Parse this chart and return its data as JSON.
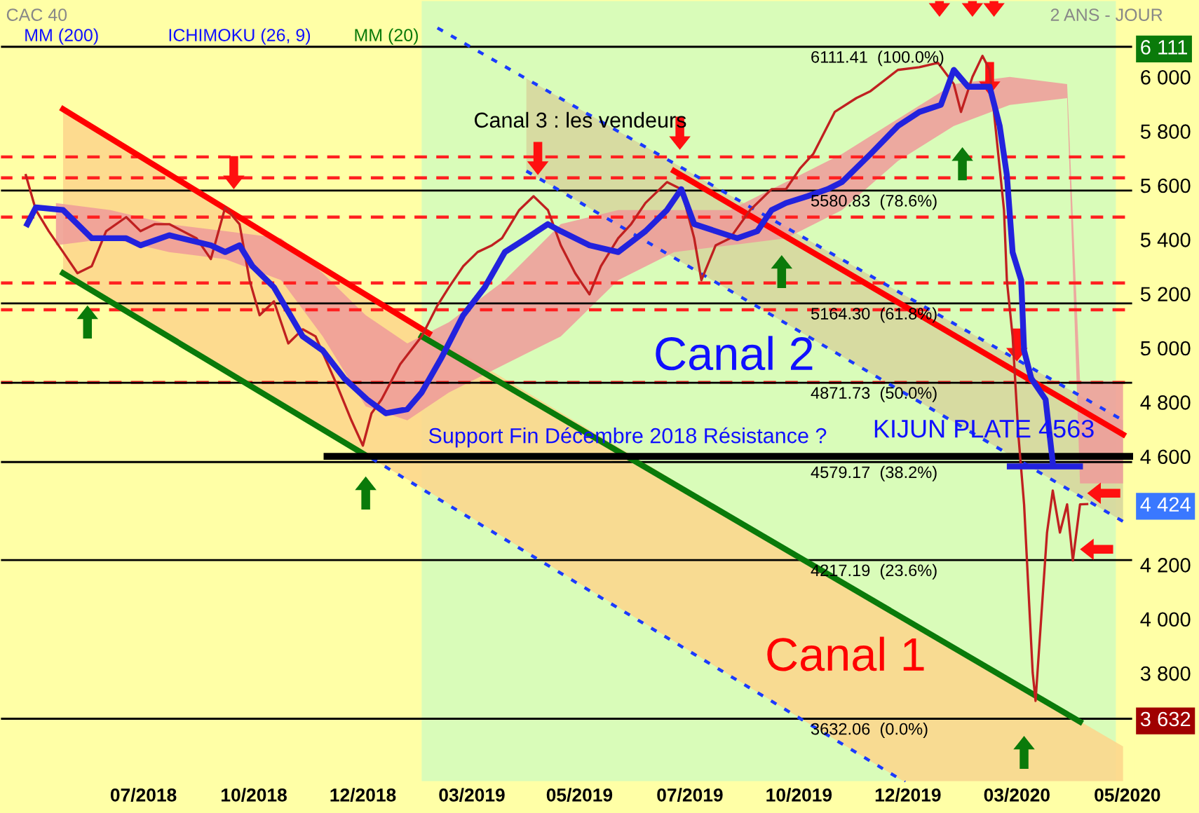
{
  "chart_data": {
    "type": "line",
    "title": "CAC 40",
    "subtitle": "2 ANS - JOUR",
    "annotations": [
      "MM (200)",
      "ICHIMOKU (26, 9)",
      "MM (20)",
      "Canal 3 : les vendeurs",
      "Canal 2",
      "Canal 1",
      "Support Fin Décembre 2018 Résistance ?",
      "KIJUN PLATE 4563"
    ],
    "xlim": [
      "2018-03-23",
      "2020-05-21"
    ],
    "ylim": [
      3398,
      6284
    ],
    "xticks": [
      {
        "value": "2018-07-01",
        "label": "07/2018"
      },
      {
        "value": "2018-09-16",
        "label": "10/2018"
      },
      {
        "value": "2018-12-01",
        "label": "12/2018"
      },
      {
        "value": "2019-02-15",
        "label": "03/2019"
      },
      {
        "value": "2019-05-01",
        "label": "05/2019"
      },
      {
        "value": "2019-07-17",
        "label": "07/2019"
      },
      {
        "value": "2019-10-01",
        "label": "10/2019"
      },
      {
        "value": "2019-12-16",
        "label": "12/2019"
      },
      {
        "value": "2020-03-01",
        "label": "03/2020"
      },
      {
        "value": "2020-05-17",
        "label": "05/2020"
      }
    ],
    "yticks": [
      {
        "value": 3632,
        "label": "3 632"
      },
      {
        "value": 3800,
        "label": "3 800"
      },
      {
        "value": 4000,
        "label": "4 000"
      },
      {
        "value": 4200,
        "label": "4 200"
      },
      {
        "value": 4424,
        "label": "4 424"
      },
      {
        "value": 4600,
        "label": "4 600"
      },
      {
        "value": 4800,
        "label": "4 800"
      },
      {
        "value": 5000,
        "label": "5 000"
      },
      {
        "value": 5200,
        "label": "5 200"
      },
      {
        "value": 5400,
        "label": "5 400"
      },
      {
        "value": 5600,
        "label": "5 600"
      },
      {
        "value": 5800,
        "label": "5 800"
      },
      {
        "value": 6000,
        "label": "6 000"
      },
      {
        "value": 6111,
        "label": "6 111"
      }
    ],
    "bands": [
      {
        "axis": "x",
        "from": "2019-01-11",
        "to": "2020-05-09",
        "color": "#d9fcb9"
      }
    ],
    "series": [
      {
        "type": "area",
        "color": "#fdd58b",
        "x": [
          "2018-05-06",
          "2018-12-03",
          "2019-01-16",
          "2019-12-14",
          "2020-05-14"
        ],
        "values": [
          null,
          null,
          null,
          null,
          null
        ],
        "upper": [
          5881,
          5197,
          5054,
          3999,
          3530
        ],
        "lower": [
          5276,
          4604,
          4470,
          3398,
          3398
        ]
      },
      {
        "type": "area",
        "color": "#d6d59c",
        "x": [
          "2019-03-25",
          "2020-05-14"
        ],
        "values": [
          null,
          null
        ],
        "upper": [
          5994,
          4733
        ],
        "lower": [
          5653,
          4360
        ]
      },
      {
        "type": "area",
        "color": "#ee9a9a",
        "x": [
          "2018-05-01",
          "2018-06-08",
          "2018-07-19",
          "2018-08-27",
          "2018-10-05",
          "2018-11-03",
          "2018-12-03",
          "2019-01-01",
          "2019-01-30",
          "2019-03-10",
          "2019-04-18",
          "2019-05-28",
          "2019-07-06",
          "2019-08-14",
          "2019-09-22",
          "2019-10-31",
          "2019-12-09",
          "2020-01-17",
          "2020-02-25",
          "2020-04-05",
          "2020-04-14",
          "2020-05-14"
        ],
        "values": [
          null,
          null,
          null,
          null,
          null,
          null,
          null,
          null,
          null,
          null,
          null,
          null,
          null,
          null,
          null,
          null,
          null,
          null,
          null,
          null,
          null,
          null
        ],
        "upper": [
          5535,
          5509,
          5457,
          5431,
          5405,
          5276,
          5121,
          5017,
          5095,
          5250,
          5457,
          5509,
          5509,
          5509,
          5612,
          5716,
          5845,
          5974,
          6000,
          5974,
          4878,
          4878
        ],
        "lower": [
          5379,
          5405,
          5354,
          5328,
          5250,
          5043,
          4785,
          4733,
          4836,
          4940,
          5043,
          5250,
          5354,
          5379,
          5405,
          5509,
          5690,
          5819,
          5897,
          5922,
          4500,
          4500
        ]
      },
      {
        "color": "#ff0000",
        "x": [
          "2018-05-06",
          "2019-01-16"
        ],
        "values": [
          5881,
          5054
        ]
      },
      {
        "color": "#ff0000",
        "x": [
          "2019-07-06",
          "2020-05-14"
        ],
        "values": [
          5653,
          4681
        ]
      },
      {
        "color": "#0a7a0a",
        "x": [
          "2018-05-06",
          "2018-12-03"
        ],
        "values": [
          5276,
          4604
        ]
      },
      {
        "color": "#0a7a0a",
        "x": [
          "2019-01-11",
          "2020-04-14"
        ],
        "values": [
          5043,
          3621
        ]
      },
      {
        "color": "#1a3aff",
        "line_style": "dotted",
        "x": [
          "2019-01-22",
          "2020-05-14"
        ],
        "values": [
          6181,
          4733
        ]
      },
      {
        "color": "#1a3aff",
        "line_style": "dotted",
        "x": [
          "2019-03-25",
          "2020-05-14"
        ],
        "values": [
          5653,
          4360
        ]
      },
      {
        "color": "#1a3aff",
        "line_style": "dotted",
        "x": [
          "2018-12-07",
          "2019-12-14"
        ],
        "values": [
          4593,
          3398
        ]
      },
      {
        "color": "#000000",
        "x": [
          "2018-11-06",
          "2020-05-21"
        ],
        "values": [
          4600,
          4600
        ]
      },
      {
        "color": "#c02020",
        "x": [
          "2018-04-10",
          "2018-04-17",
          "2018-04-26",
          "2018-05-06",
          "2018-05-16",
          "2018-05-26",
          "2018-06-05",
          "2018-06-19",
          "2018-06-29",
          "2018-07-09",
          "2018-07-19",
          "2018-08-07",
          "2018-08-17",
          "2018-08-27",
          "2018-09-06",
          "2018-09-13",
          "2018-09-20",
          "2018-09-30",
          "2018-10-10",
          "2018-10-20",
          "2018-10-29",
          "2018-11-13",
          "2018-11-23",
          "2018-12-01",
          "2018-12-07",
          "2018-12-14",
          "2018-12-27",
          "2019-01-11",
          "2019-01-22",
          "2019-01-30",
          "2019-02-09",
          "2019-02-19",
          "2019-03-01",
          "2019-03-08",
          "2019-03-20",
          "2019-03-30",
          "2019-04-09",
          "2019-04-18",
          "2019-04-28",
          "2019-05-08",
          "2019-05-16",
          "2019-05-28",
          "2019-06-06",
          "2019-06-16",
          "2019-07-01",
          "2019-07-11",
          "2019-07-20",
          "2019-07-25",
          "2019-08-04",
          "2019-08-14",
          "2019-08-28",
          "2019-09-12",
          "2019-09-22",
          "2019-10-02",
          "2019-10-11",
          "2019-10-26",
          "2019-11-10",
          "2019-11-20",
          "2019-12-09",
          "2019-12-24",
          "2020-01-06",
          "2020-01-17",
          "2020-01-22",
          "2020-01-30",
          "2020-02-06",
          "2020-02-11",
          "2020-02-16",
          "2020-02-21",
          "2020-02-23",
          "2020-02-27",
          "2020-03-02",
          "2020-03-06",
          "2020-03-09",
          "2020-03-12",
          "2020-03-14",
          "2020-03-18",
          "2020-03-22",
          "2020-03-26",
          "2020-03-31",
          "2020-04-05",
          "2020-04-09",
          "2020-04-14",
          "2020-04-19"
        ],
        "values": [
          5638,
          5509,
          5431,
          5354,
          5276,
          5302,
          5431,
          5483,
          5431,
          5457,
          5457,
          5405,
          5328,
          5519,
          5457,
          5250,
          5121,
          5172,
          5017,
          5069,
          5043,
          4862,
          4733,
          4640,
          4759,
          4810,
          4940,
          5043,
          5157,
          5224,
          5302,
          5354,
          5379,
          5405,
          5509,
          5560,
          5509,
          5379,
          5276,
          5198,
          5302,
          5405,
          5457,
          5535,
          5612,
          5586,
          5405,
          5250,
          5379,
          5405,
          5509,
          5586,
          5586,
          5664,
          5716,
          5871,
          5922,
          5948,
          6026,
          6036,
          6052,
          5974,
          5871,
          6000,
          6078,
          6026,
          5767,
          5509,
          5250,
          5043,
          4681,
          4423,
          4112,
          3802,
          3698,
          4009,
          4319,
          4474,
          4319,
          4423,
          4216,
          4423,
          4424
        ]
      },
      {
        "color": "#2222dd",
        "x": [
          "2018-04-11",
          "2018-04-17",
          "2018-05-06",
          "2018-05-16",
          "2018-05-26",
          "2018-06-19",
          "2018-06-29",
          "2018-07-19",
          "2018-08-17",
          "2018-08-27",
          "2018-09-06",
          "2018-09-15",
          "2018-09-30",
          "2018-10-20",
          "2018-11-03",
          "2018-11-18",
          "2018-12-04",
          "2018-12-17",
          "2019-01-01",
          "2019-01-11",
          "2019-01-25",
          "2019-02-09",
          "2019-02-24",
          "2019-03-10",
          "2019-03-25",
          "2019-04-09",
          "2019-04-18",
          "2019-05-08",
          "2019-05-28",
          "2019-06-16",
          "2019-07-01",
          "2019-07-11",
          "2019-07-20",
          "2019-08-04",
          "2019-08-19",
          "2019-09-02",
          "2019-09-12",
          "2019-09-22",
          "2019-10-07",
          "2019-10-21",
          "2019-10-31",
          "2019-11-20",
          "2019-12-09",
          "2019-12-24",
          "2020-01-08",
          "2020-01-17",
          "2020-01-27",
          "2020-02-11",
          "2020-02-18",
          "2020-02-23",
          "2020-02-27",
          "2020-03-04",
          "2020-03-06",
          "2020-03-11",
          "2020-03-21",
          "2020-03-26"
        ],
        "values": [
          5457,
          5519,
          5509,
          5457,
          5405,
          5405,
          5379,
          5416,
          5379,
          5354,
          5379,
          5302,
          5224,
          5043,
          4991,
          4888,
          4810,
          4759,
          4774,
          4836,
          4966,
          5121,
          5224,
          5354,
          5405,
          5457,
          5431,
          5379,
          5354,
          5431,
          5509,
          5586,
          5457,
          5431,
          5405,
          5431,
          5509,
          5535,
          5560,
          5586,
          5612,
          5716,
          5819,
          5871,
          5897,
          6026,
          5964,
          5964,
          5819,
          5638,
          5353,
          5250,
          4991,
          4888,
          4810,
          4577
        ]
      },
      {
        "color": "#2222dd",
        "x": [
          "2020-02-25",
          "2020-04-14"
        ],
        "values": [
          4563,
          4563
        ]
      }
    ],
    "ref_lines": [
      {
        "axis": "y",
        "value": 5628,
        "color": "#ff2020",
        "line_style": "dashed"
      },
      {
        "axis": "y",
        "value": 5483,
        "color": "#ff2020",
        "line_style": "dashed"
      },
      {
        "axis": "y",
        "value": 5240,
        "color": "#ff2020",
        "line_style": "dashed"
      },
      {
        "axis": "y",
        "value": 5141,
        "color": "#ff2020",
        "line_style": "dashed"
      },
      {
        "axis": "y",
        "value": 4873,
        "color": "#ff2020",
        "line_style": "dashed"
      },
      {
        "axis": "y",
        "value": 5705,
        "color": "#ff2020",
        "line_style": "dashed"
      },
      {
        "axis": "y",
        "value": 6111.41,
        "label": "6111.41  (100.0%)",
        "color": "#000000",
        "line_style": "solid"
      },
      {
        "axis": "y",
        "value": 5580.83,
        "label": "5580.83  (78.6%)",
        "color": "#000000",
        "line_style": "solid"
      },
      {
        "axis": "y",
        "value": 5164.3,
        "label": "5164.30  (61.8%)",
        "color": "#000000",
        "line_style": "solid"
      },
      {
        "axis": "y",
        "value": 4871.73,
        "label": "4871.73  (50.0%)",
        "color": "#000000",
        "line_style": "solid"
      },
      {
        "axis": "y",
        "value": 4579.17,
        "label": "4579.17  (38.2%)",
        "color": "#000000",
        "line_style": "solid"
      },
      {
        "axis": "y",
        "value": 4217.19,
        "label": "4217.19  (23.6%)",
        "color": "#000000",
        "line_style": "solid"
      },
      {
        "axis": "y",
        "value": 3632.06,
        "label": "3632.06  (0.0%)",
        "color": "#000000",
        "line_style": "solid"
      }
    ],
    "grid": false
  }
}
